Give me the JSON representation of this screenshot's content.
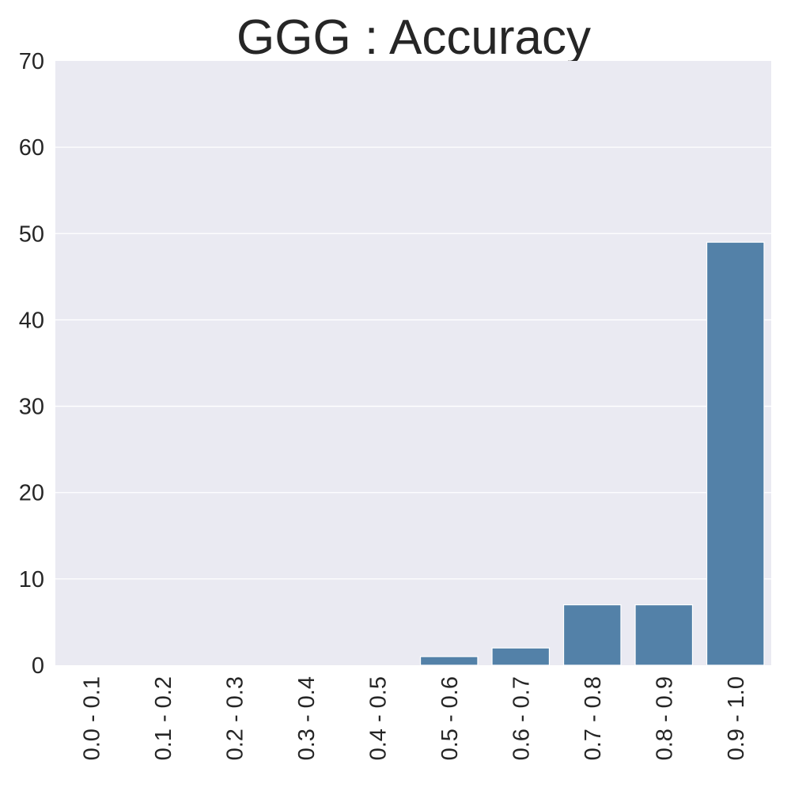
{
  "chart_data": {
    "type": "bar",
    "title": "GGG : Accuracy",
    "xlabel": "",
    "ylabel": "",
    "categories": [
      "0.0 - 0.1",
      "0.1 - 0.2",
      "0.2 - 0.3",
      "0.3 - 0.4",
      "0.4 - 0.5",
      "0.5 - 0.6",
      "0.6 - 0.7",
      "0.7 - 0.8",
      "0.8 - 0.9",
      "0.9 - 1.0"
    ],
    "values": [
      0,
      0,
      0,
      0,
      0,
      1,
      2,
      7,
      7,
      49
    ],
    "ylim": [
      0,
      70
    ],
    "yticks": [
      0,
      10,
      20,
      30,
      40,
      50,
      60,
      70
    ],
    "grid": true,
    "legend": "none",
    "bar_color": "#5381a8",
    "background_color": "#eaeaf2"
  }
}
